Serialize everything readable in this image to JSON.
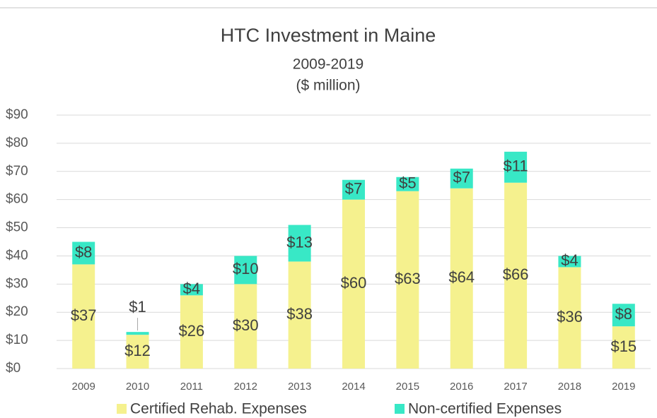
{
  "chart_data": {
    "type": "stacked_bar",
    "title": "HTC Investment in Maine",
    "subtitle": [
      "2009-2019",
      "($ million)"
    ],
    "categories": [
      "2009",
      "2010",
      "2011",
      "2012",
      "2013",
      "2014",
      "2015",
      "2016",
      "2017",
      "2018",
      "2019"
    ],
    "series": [
      {
        "name": "Certified Rehab. Expenses",
        "color": "#f5f18e",
        "values": [
          37,
          12,
          26,
          30,
          38,
          60,
          63,
          64,
          66,
          36,
          15
        ],
        "value_labels": [
          "$37",
          "$12",
          "$26",
          "$30",
          "$38",
          "$60",
          "$63",
          "$64",
          "$66",
          "$36",
          "$15"
        ]
      },
      {
        "name": "Non-certified Expenses",
        "color": "#38e8c6",
        "values": [
          8,
          1,
          4,
          10,
          13,
          7,
          5,
          7,
          11,
          4,
          8
        ],
        "value_labels": [
          "$8",
          "$1",
          "$4",
          "$10",
          "$13",
          "$7",
          "$5",
          "$7",
          "$11",
          "$4",
          "$8"
        ]
      }
    ],
    "ylim": [
      0,
      90
    ],
    "yticks": [
      {
        "value": 0,
        "label": "$0"
      },
      {
        "value": 10,
        "label": "$10"
      },
      {
        "value": 20,
        "label": "$20"
      },
      {
        "value": 30,
        "label": "$30"
      },
      {
        "value": 40,
        "label": "$40"
      },
      {
        "value": 50,
        "label": "$50"
      },
      {
        "value": 60,
        "label": "$60"
      },
      {
        "value": 70,
        "label": "$70"
      },
      {
        "value": 80,
        "label": "$80"
      },
      {
        "value": 90,
        "label": "$90"
      }
    ],
    "grid": true,
    "legend": "bottom"
  }
}
